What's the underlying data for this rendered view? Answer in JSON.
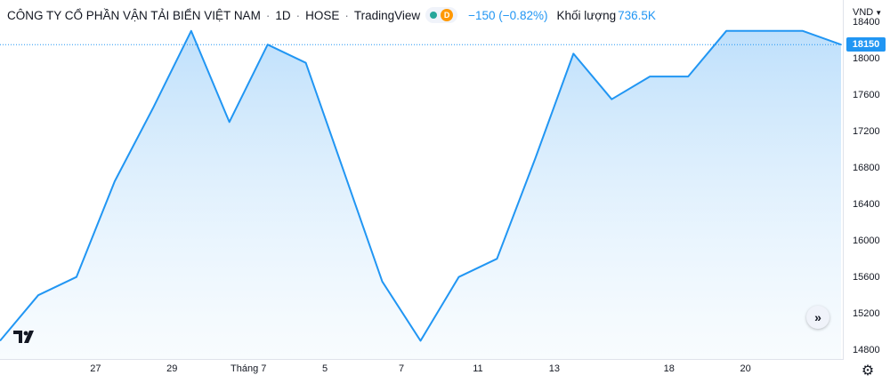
{
  "header": {
    "symbol_name": "CÔNG TY CỔ PHẦN VẬN TẢI BIỂN VIỆT NAM",
    "separator": "·",
    "interval": "1D",
    "exchange": "HOSE",
    "source": "TradingView",
    "status_badge": "D",
    "change": "−150 (−0.82%)",
    "volume_label": "Khối lượng",
    "volume_value": "736.5K"
  },
  "price_scale": {
    "currency": "VND",
    "last_price": "18150"
  },
  "colors": {
    "line": "#2196f3",
    "fill_top": "#bbdefb",
    "badge": "#2196f3",
    "market_open": "#26a69a",
    "status_d": "#ff9800"
  },
  "icons": {
    "logo": "tradingview-logo-icon",
    "scroll": "double-chevron-right-icon",
    "settings": "gear-icon",
    "currency_dropdown": "caret-down-icon"
  },
  "chart_data": {
    "type": "area",
    "title": "",
    "xlabel": "",
    "ylabel": "",
    "ylim": [
      14700,
      18600
    ],
    "y_ticks": [
      14800,
      15200,
      15600,
      16000,
      16400,
      16800,
      17200,
      17600,
      18000,
      18400
    ],
    "x_ticks": [
      {
        "label": "27",
        "index": 2.5
      },
      {
        "label": "29",
        "index": 4.5
      },
      {
        "label": "Tháng 7",
        "index": 6.5
      },
      {
        "label": "5",
        "index": 8.5
      },
      {
        "label": "7",
        "index": 10.5
      },
      {
        "label": "11",
        "index": 12.5
      },
      {
        "label": "13",
        "index": 14.5
      },
      {
        "label": "18",
        "index": 17.5
      },
      {
        "label": "20",
        "index": 19.5
      }
    ],
    "series": [
      {
        "values": [
          14900,
          15400,
          15600,
          16650,
          17450,
          18300,
          17300,
          18150,
          17950,
          16750,
          15550,
          14900,
          15600,
          15800,
          16900,
          18050,
          17550,
          17800,
          17800,
          18300,
          18300,
          18300,
          18150
        ]
      }
    ],
    "last_value": 18150,
    "grid": false,
    "legend": "none"
  }
}
